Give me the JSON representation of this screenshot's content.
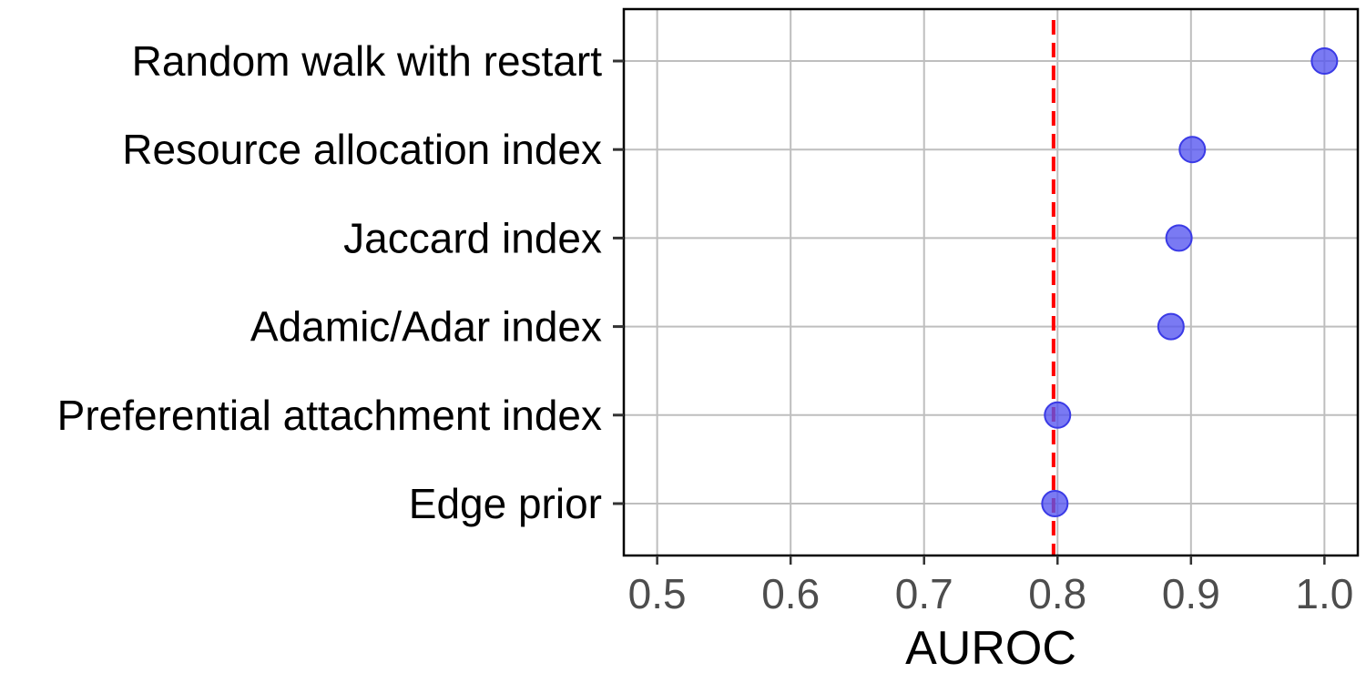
{
  "chart_data": {
    "type": "scatter",
    "categories": [
      "Random walk with restart",
      "Resource allocation index",
      "Jaccard index",
      "Adamic/Adar index",
      "Preferential attachment index",
      "Edge prior"
    ],
    "values": [
      1.0,
      0.901,
      0.891,
      0.885,
      0.8,
      0.798
    ],
    "xlabel": "AUROC",
    "ylabel": "",
    "xlim": [
      0.475,
      1.025
    ],
    "x_ticks": [
      "0.5",
      "0.6",
      "0.7",
      "0.8",
      "0.9",
      "1.0"
    ],
    "x_tick_values": [
      0.5,
      0.6,
      0.7,
      0.8,
      0.9,
      1.0
    ],
    "reference_line": {
      "x": 0.797,
      "style": "dashed",
      "color": "#ff0000"
    },
    "grid": true,
    "legend": "none",
    "point_color": "#5555f0",
    "point_stroke": "#3a3ae6"
  }
}
